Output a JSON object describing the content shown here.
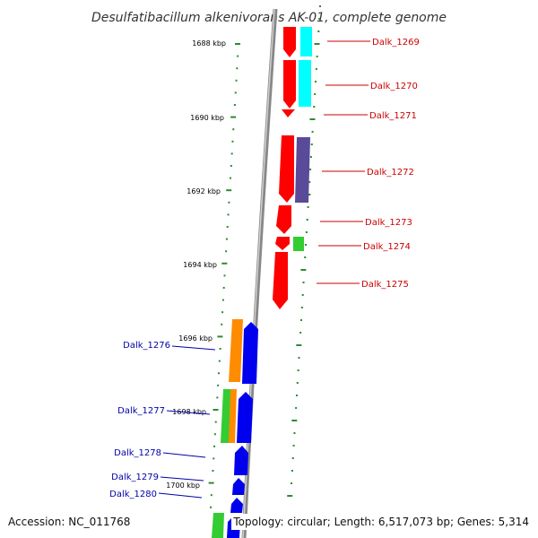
{
  "title": "Desulfatibacillum alkenivorans AK-01, complete genome",
  "footer": {
    "accession": "Accession: NC_011768",
    "topology": "Topology: circular; Length: 6,517,073 bp; Genes: 5,314"
  },
  "ruler_labels": [
    "1688 kbp",
    "1690 kbp",
    "1692 kbp",
    "1694 kbp",
    "1696 kbp",
    "1698 kbp",
    "1700 kbp"
  ],
  "genes": [
    {
      "id": "Dalk_1269",
      "color": "#cc0000"
    },
    {
      "id": "Dalk_1270",
      "color": "#cc0000"
    },
    {
      "id": "Dalk_1271",
      "color": "#cc0000"
    },
    {
      "id": "Dalk_1272",
      "color": "#cc0000"
    },
    {
      "id": "Dalk_1273",
      "color": "#cc0000"
    },
    {
      "id": "Dalk_1274",
      "color": "#cc0000"
    },
    {
      "id": "Dalk_1275",
      "color": "#cc0000"
    },
    {
      "id": "Dalk_1276",
      "color": "#0000aa"
    },
    {
      "id": "Dalk_1277",
      "color": "#0000aa"
    },
    {
      "id": "Dalk_1278",
      "color": "#0000aa"
    },
    {
      "id": "Dalk_1279",
      "color": "#0000aa"
    },
    {
      "id": "Dalk_1280",
      "color": "#0000aa"
    }
  ],
  "colors": {
    "forward_strand": "#ff0000",
    "reverse_strand": "#0000ee",
    "cyan_track": "#00ffff",
    "purple_track": "#5a4a9a",
    "green_track": "#33cc33",
    "orange_track": "#ff8c00",
    "dots": "#2e8b2e",
    "backbone": "#888888"
  }
}
